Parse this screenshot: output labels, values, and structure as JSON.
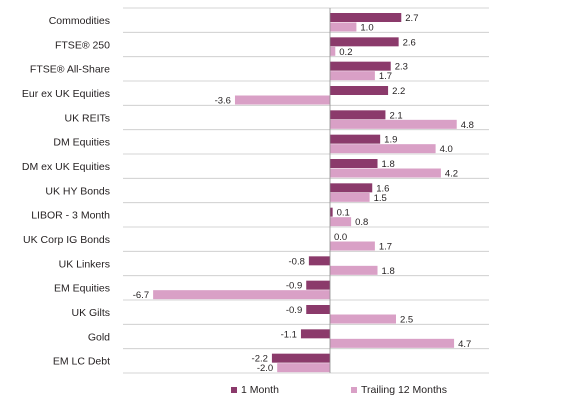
{
  "colors": {
    "one_month": "#8b3a6b",
    "trailing_12": "#d9a0c6",
    "grid": "#c9c9c9",
    "axis": "#8c8c8c",
    "text": "#231f20"
  },
  "legend": {
    "one_month": "1 Month",
    "trailing_12": "Trailing 12 Months"
  },
  "chart_data": {
    "type": "bar",
    "orientation": "horizontal",
    "categories": [
      "Commodities",
      "FTSE® 250",
      "FTSE® All-Share",
      "Eur ex UK Equities",
      "UK REITs",
      "DM Equities",
      "DM ex UK Equities",
      "UK HY Bonds",
      "LIBOR - 3 Month",
      "UK Corp IG Bonds",
      "UK Linkers",
      "EM Equities",
      "UK Gilts",
      "Gold",
      "EM LC Debt"
    ],
    "series": [
      {
        "name": "1 Month",
        "values": [
          2.7,
          2.6,
          2.3,
          2.2,
          2.1,
          1.9,
          1.8,
          1.6,
          0.1,
          0.0,
          -0.8,
          -0.9,
          -0.9,
          -1.1,
          -2.2
        ],
        "labels": [
          "2.7",
          "2.6",
          "2.3",
          "2.2",
          "2.1",
          "1.9",
          "1.8",
          "1.6",
          "0.1",
          "0.0",
          "-0.8",
          "-0.9",
          "-0.9",
          "-1.1",
          "-2.2"
        ]
      },
      {
        "name": "Trailing 12 Months",
        "values": [
          1.0,
          0.2,
          1.7,
          -3.6,
          4.8,
          4.0,
          4.2,
          1.5,
          0.8,
          1.7,
          1.8,
          -6.7,
          2.5,
          4.7,
          -2.0
        ],
        "labels": [
          "1.0",
          "0.2",
          "1.7",
          "-3.6",
          "4.8",
          "4.0",
          "4.2",
          "1.5",
          "0.8",
          "1.7",
          "1.8",
          "-6.7",
          "2.5",
          "4.7",
          "-2.0"
        ]
      }
    ],
    "xlim": [
      -8.0,
      6.0
    ],
    "grid": "horizontal-separators",
    "legend_position": "bottom"
  }
}
